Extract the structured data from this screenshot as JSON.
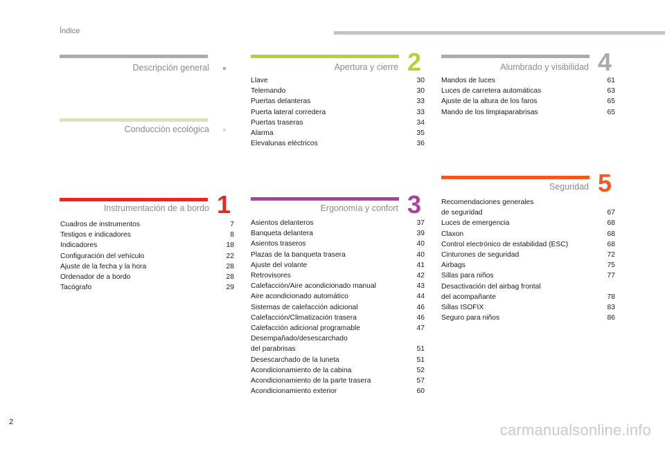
{
  "header": {
    "title": "Índice"
  },
  "sections": {
    "descripcion": {
      "title": "Descripción general",
      "color": "#a6adad"
    },
    "conduccion": {
      "title": "Conducción ecológica",
      "color": "#dfe0b4"
    },
    "instrumentacion": {
      "number": "1",
      "title": "Instrumentación de a bordo",
      "color": "#e32926",
      "entries": [
        {
          "label": "Cuadros de instrumentos",
          "page": "7"
        },
        {
          "label": "Testigos e indicadores",
          "page": "8"
        },
        {
          "label": "Indicadores",
          "page": "18"
        },
        {
          "label": "Configuración del vehículo",
          "page": "22"
        },
        {
          "label": "Ajuste de la fecha y la hora",
          "page": "28"
        },
        {
          "label": "Ordenador de a bordo",
          "page": "28"
        },
        {
          "label": "Tacógrafo",
          "page": "29"
        }
      ]
    },
    "apertura": {
      "number": "2",
      "title": "Apertura y cierre",
      "color": "#b3d334",
      "entries": [
        {
          "label": "Llave",
          "page": "30"
        },
        {
          "label": "Telemando",
          "page": "30"
        },
        {
          "label": "Puertas delanteras",
          "page": "33"
        },
        {
          "label": "Puerta lateral corredera",
          "page": "33"
        },
        {
          "label": "Puertas traseras",
          "page": "34"
        },
        {
          "label": "Alarma",
          "page": "35"
        },
        {
          "label": "Elevalunas eléctricos",
          "page": "36"
        }
      ]
    },
    "ergonomia": {
      "number": "3",
      "title": "Ergonomía y confort",
      "color": "#b03da0",
      "entries": [
        {
          "label": "Asientos delanteros",
          "page": "37"
        },
        {
          "label": "Banqueta delantera",
          "page": "39"
        },
        {
          "label": "Asientos traseros",
          "page": "40"
        },
        {
          "label": "Plazas de la banqueta trasera",
          "page": "40"
        },
        {
          "label": "Ajuste del volante",
          "page": "41"
        },
        {
          "label": "Retrovisores",
          "page": "42"
        },
        {
          "label": "Calefacción/Aire acondicionado manual",
          "page": "43"
        },
        {
          "label": "Aire acondicionado automático",
          "page": "44"
        },
        {
          "label": "Sistemas de calefacción adicional",
          "page": "46"
        },
        {
          "label": "Calefacción/Climatización trasera",
          "page": "46"
        },
        {
          "label": "Calefacción adicional programable",
          "page": "47"
        },
        {
          "label": "Desempañado/desescarchado\ndel parabrisas",
          "page": "51"
        },
        {
          "label": "Desescarchado de la luneta",
          "page": "51"
        },
        {
          "label": "Acondicionamiento de la cabina",
          "page": "52"
        },
        {
          "label": "Acondicionamiento de la parte trasera",
          "page": "57"
        },
        {
          "label": "Acondicionamiento exterior",
          "page": "60"
        }
      ]
    },
    "alumbrado": {
      "number": "4",
      "title": "Alumbrado y visibilidad",
      "color": "#a6adad",
      "entries": [
        {
          "label": "Mandos de luces",
          "page": "61"
        },
        {
          "label": "Luces de carretera automáticas",
          "page": "63"
        },
        {
          "label": "Ajuste de la altura de los faros",
          "page": "65"
        },
        {
          "label": "Mando de los limpiaparabrisas",
          "page": "65"
        }
      ]
    },
    "seguridad": {
      "number": "5",
      "title": "Seguridad",
      "color": "#f05a22",
      "entries": [
        {
          "label": "Recomendaciones generales\nde seguridad",
          "page": "67"
        },
        {
          "label": "Luces de emergencia",
          "page": "68"
        },
        {
          "label": "Claxon",
          "page": "68"
        },
        {
          "label": "Control electrónico de estabilidad (ESC)",
          "page": "68"
        },
        {
          "label": "Cinturones de seguridad",
          "page": "72"
        },
        {
          "label": "Airbags",
          "page": "75"
        },
        {
          "label": "Sillas para niños",
          "page": "77"
        },
        {
          "label": "Desactivación del airbag frontal\ndel acompañante",
          "page": "78"
        },
        {
          "label": "Sillas ISOFIX",
          "page": "83"
        },
        {
          "label": "Seguro para niños",
          "page": "86"
        }
      ]
    }
  },
  "footer": {
    "page_number": "2",
    "watermark": "carmanualsonline.info"
  }
}
